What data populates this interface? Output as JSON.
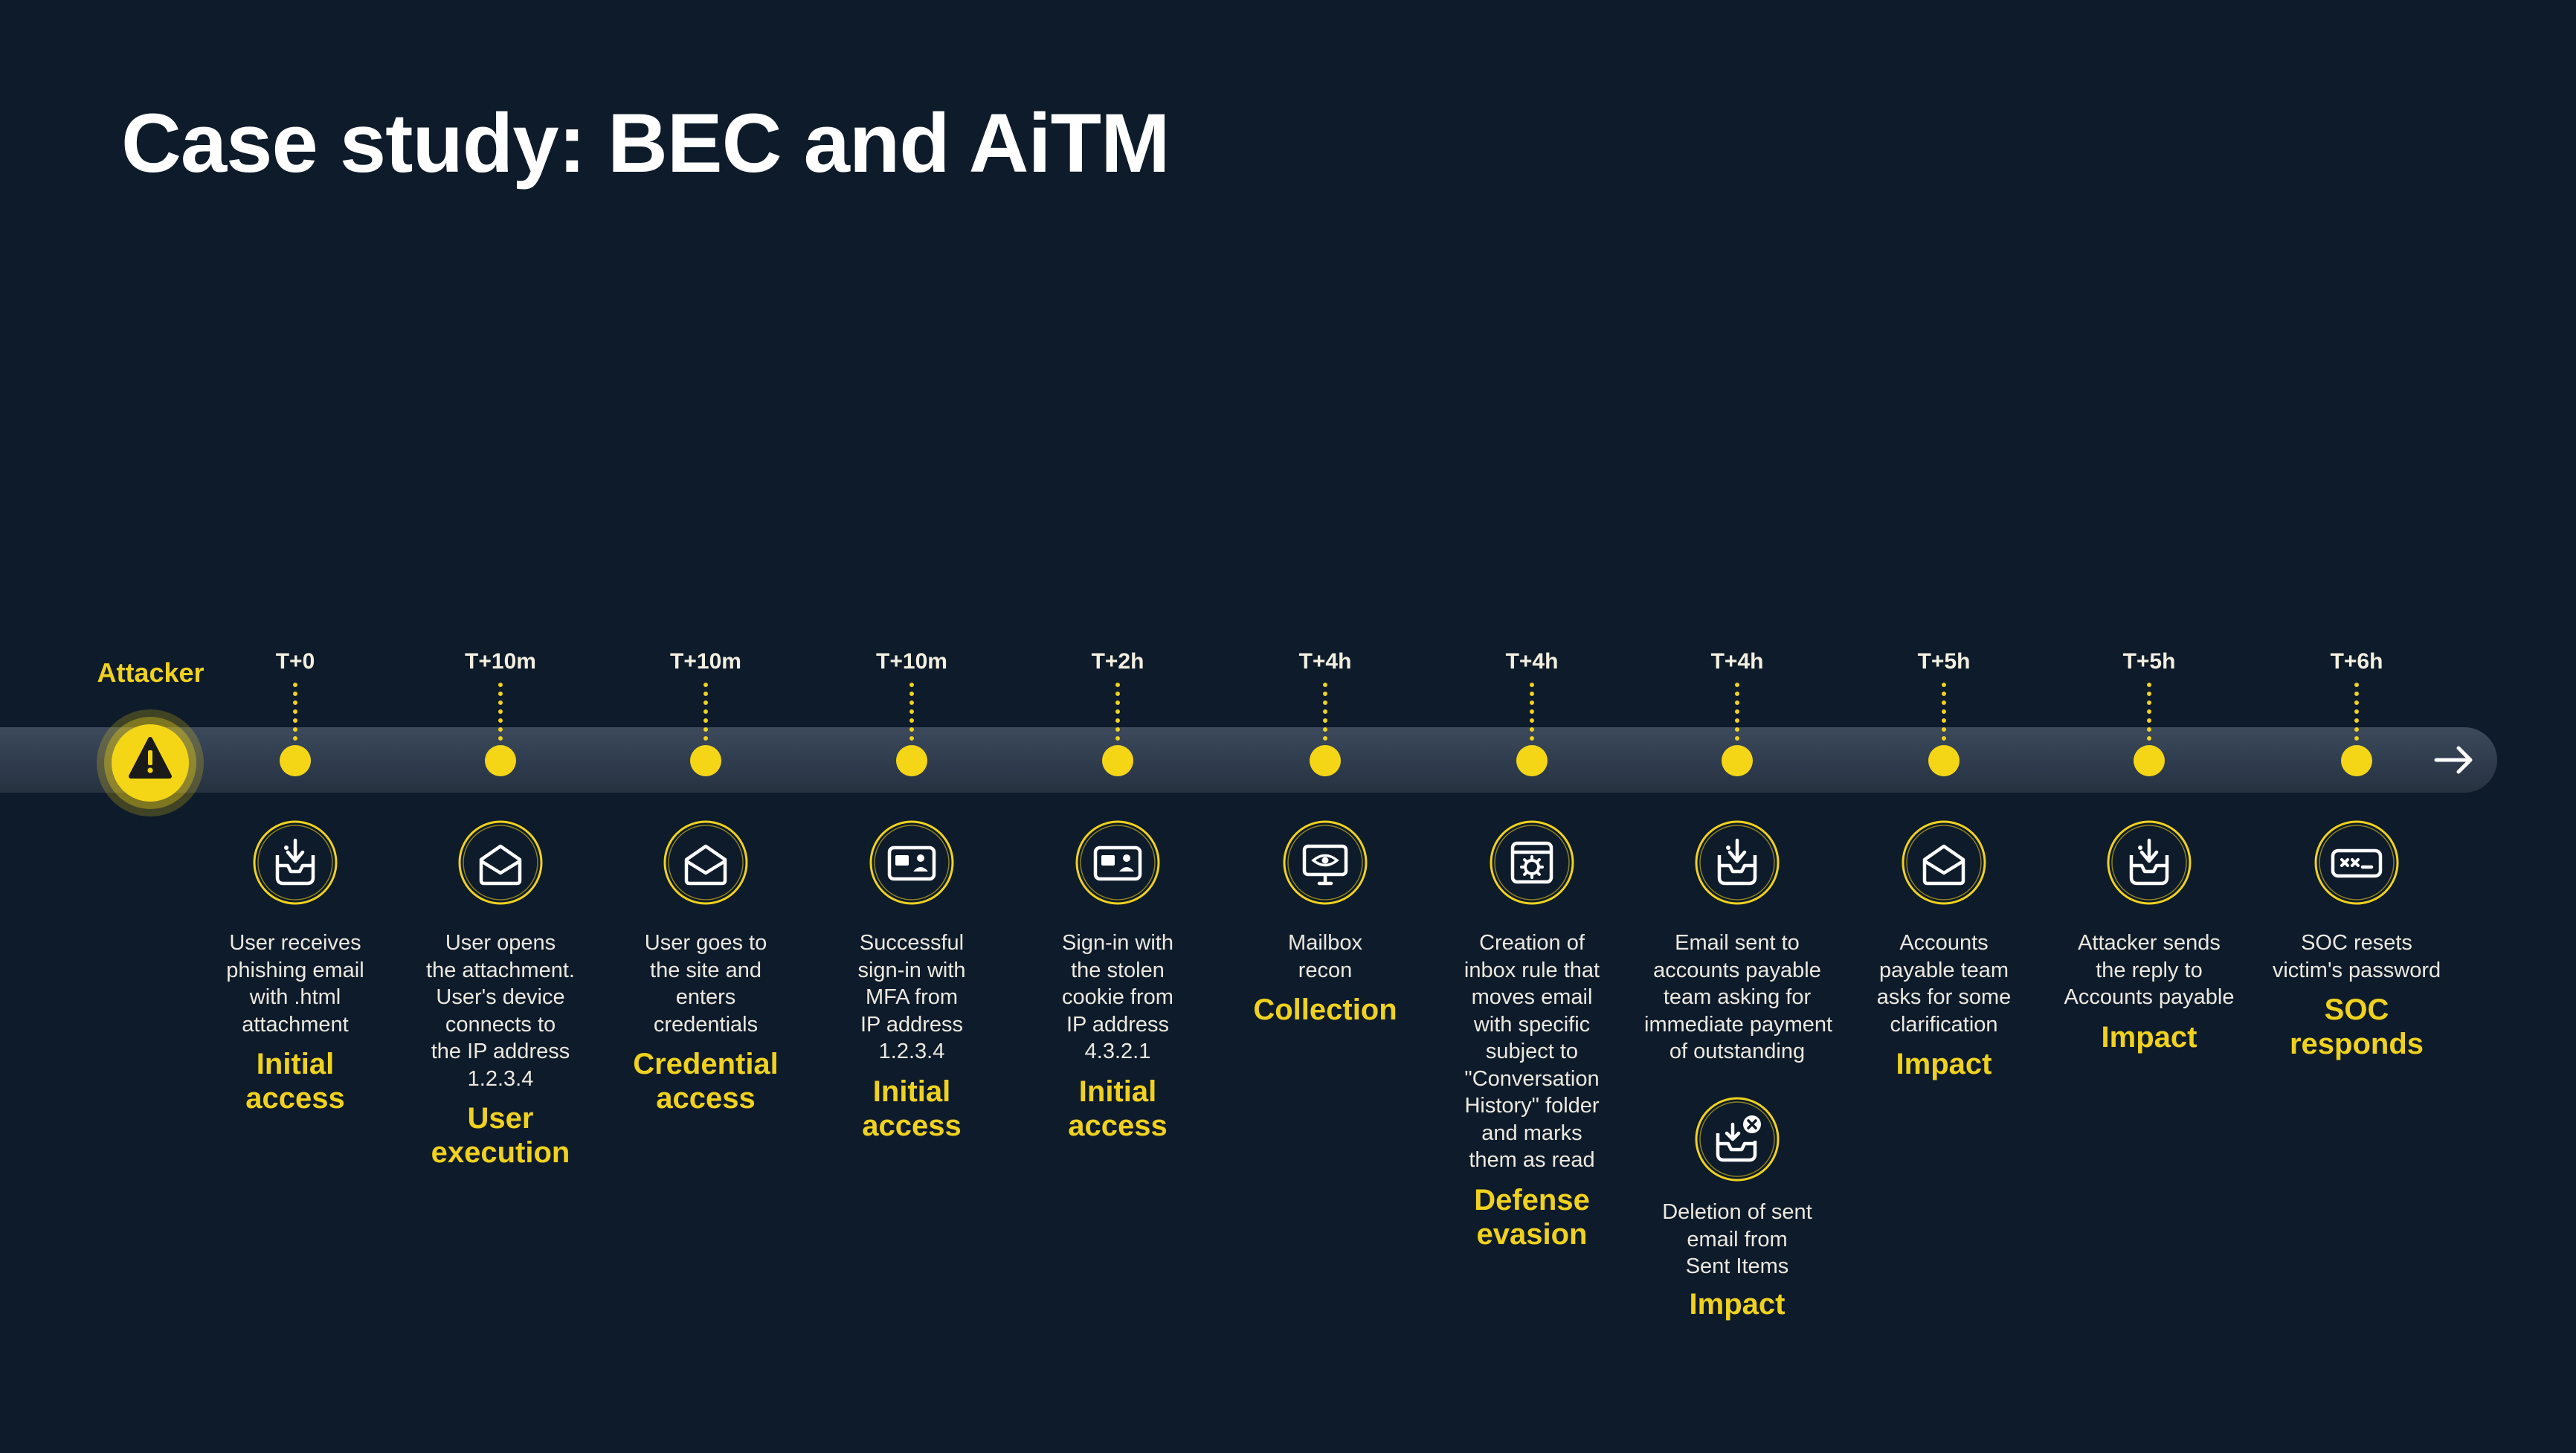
{
  "title": "Case study: BEC and AiTM",
  "attacker_label": "Attacker",
  "colors": {
    "background": "#0e1b2a",
    "accent": "#f0d21e",
    "band": "#334154",
    "text": "#ece9e0"
  },
  "events": [
    {
      "time": "T+0",
      "icon": "inbox-download-icon",
      "desc": [
        "User receives",
        "phishing email",
        "with .html",
        "attachment"
      ],
      "tactic": [
        "Initial",
        "access"
      ]
    },
    {
      "time": "T+10m",
      "icon": "open-envelope-icon",
      "desc": [
        "User opens",
        "the attachment.",
        "User's device",
        "connects to",
        "the IP address",
        "1.2.3.4"
      ],
      "tactic": [
        "User",
        "execution"
      ]
    },
    {
      "time": "T+10m",
      "icon": "open-envelope-icon",
      "desc": [
        "User goes to",
        "the site and",
        "enters",
        "credentials"
      ],
      "tactic": [
        "Credential",
        "access"
      ]
    },
    {
      "time": "T+10m",
      "icon": "id-card-icon",
      "desc": [
        "Successful",
        "sign-in with",
        "MFA from",
        "IP address",
        "1.2.3.4"
      ],
      "tactic": [
        "Initial",
        "access"
      ]
    },
    {
      "time": "T+2h",
      "icon": "id-card-icon",
      "desc": [
        "Sign-in with",
        "the stolen",
        "cookie from",
        "IP address",
        "4.3.2.1"
      ],
      "tactic": [
        "Initial",
        "access"
      ]
    },
    {
      "time": "T+4h",
      "icon": "monitor-eye-icon",
      "desc": [
        "Mailbox",
        "recon"
      ],
      "tactic": [
        "Collection"
      ]
    },
    {
      "time": "T+4h",
      "icon": "settings-window-icon",
      "desc": [
        "Creation of",
        "inbox rule that",
        "moves email",
        "with specific",
        "subject to",
        "\"Conversation",
        "History\" folder",
        "and marks",
        "them as read"
      ],
      "tactic": [
        "Defense",
        "evasion"
      ]
    },
    {
      "time": "T+4h",
      "icon": "inbox-download-icon",
      "desc": [
        "Email sent to",
        "accounts payable",
        "team asking for",
        "immediate payment",
        "of outstanding"
      ],
      "tactic": [],
      "extra": {
        "icon": "inbox-delete-icon",
        "desc": [
          "Deletion of sent",
          "email from",
          "Sent Items"
        ],
        "tactic": "Impact"
      }
    },
    {
      "time": "T+5h",
      "icon": "open-envelope-icon",
      "desc": [
        "Accounts",
        "payable team",
        "asks for some",
        "clarification"
      ],
      "tactic": [
        "Impact"
      ]
    },
    {
      "time": "T+5h",
      "icon": "inbox-download-icon",
      "desc": [
        "Attacker sends",
        "the reply to",
        "Accounts payable"
      ],
      "tactic": [
        "Impact"
      ]
    },
    {
      "time": "T+6h",
      "icon": "password-icon",
      "desc": [
        "SOC resets",
        "victim's password"
      ],
      "tactic": [
        "SOC",
        "responds"
      ]
    }
  ]
}
